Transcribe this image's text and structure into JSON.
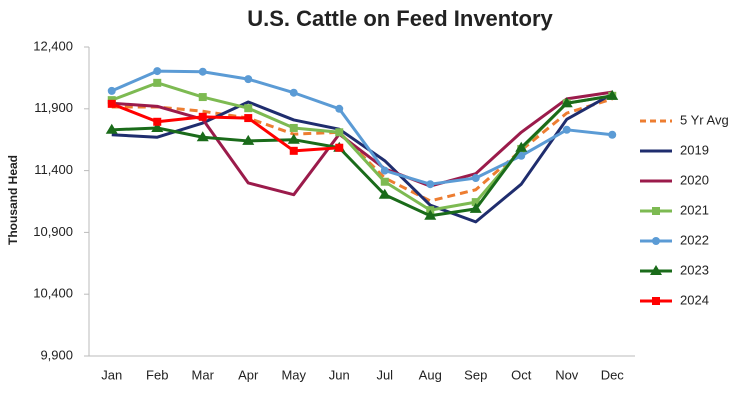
{
  "chart_data": {
    "type": "line",
    "title": "U.S. Cattle on Feed Inventory",
    "y_label": "Thousand Head",
    "categories": [
      "Jan",
      "Feb",
      "Mar",
      "Apr",
      "May",
      "Jun",
      "Jul",
      "Aug",
      "Sep",
      "Oct",
      "Nov",
      "Dec"
    ],
    "ylim": [
      9900,
      12400
    ],
    "yticks": [
      {
        "value": 9900,
        "label": "9,900"
      },
      {
        "value": 10400,
        "label": "10,400"
      },
      {
        "value": 10900,
        "label": "10,900"
      },
      {
        "value": 11400,
        "label": "11,400"
      },
      {
        "value": 11900,
        "label": "11,900"
      },
      {
        "value": 12400,
        "label": "12,400"
      }
    ],
    "legend": "right",
    "series": [
      {
        "name": "5 Yr Avg",
        "color": "#ed7d31",
        "dashed": true,
        "values": [
          11915,
          11915,
          11880,
          11825,
          11695,
          11710,
          11340,
          11155,
          11245,
          11565,
          11865,
          11980
        ]
      },
      {
        "name": "2019",
        "color": "#1f2d6e",
        "values": [
          11690,
          11670,
          11785,
          11955,
          11810,
          11735,
          11480,
          11120,
          10985,
          11290,
          11815,
          12020
        ]
      },
      {
        "name": "2020",
        "color": "#9b1b4b",
        "values": [
          11945,
          11920,
          11815,
          11300,
          11205,
          11695,
          11415,
          11275,
          11375,
          11710,
          11980,
          12035
        ]
      },
      {
        "name": "2021",
        "color": "#7dba52",
        "marker": "square",
        "values": [
          11970,
          12110,
          11995,
          11905,
          11745,
          11710,
          11310,
          11080,
          11145,
          11575,
          11945,
          12005
        ]
      },
      {
        "name": "2022",
        "color": "#5b9bd5",
        "marker": "circle",
        "values": [
          12045,
          12205,
          12200,
          12140,
          12030,
          11900,
          11400,
          11290,
          11340,
          11520,
          11730,
          11690
        ]
      },
      {
        "name": "2023",
        "color": "#1a6b1a",
        "marker": "triangle",
        "values": [
          11730,
          11745,
          11670,
          11640,
          11650,
          11585,
          11205,
          11035,
          11090,
          11585,
          11945,
          12005
        ]
      },
      {
        "name": "2024",
        "color": "#ff0000",
        "marker": "square",
        "values": [
          11940,
          11795,
          11835,
          11825,
          11560,
          11585,
          null,
          null,
          null,
          null,
          null,
          null
        ]
      }
    ]
  }
}
